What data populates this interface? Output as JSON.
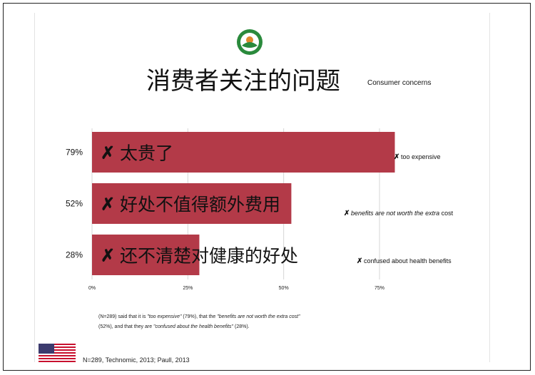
{
  "title": {
    "zh": "消费者关注的问题",
    "en": "Consumer concerns"
  },
  "chart_data": {
    "type": "bar",
    "orientation": "horizontal",
    "categories": [
      "太贵了",
      "好处不值得额外费用",
      "还不清楚对健康的好处"
    ],
    "values": [
      79,
      52,
      28
    ],
    "value_labels": [
      "79%",
      "52%",
      "28%"
    ],
    "mark": "✗",
    "english_annotations": [
      {
        "parts": [
          {
            "text": "too expensive",
            "italic": false
          }
        ]
      },
      {
        "parts": [
          {
            "text": "benefits are not worth the extra",
            "italic": true
          },
          {
            "text": " cost",
            "italic": false
          }
        ]
      },
      {
        "parts": [
          {
            "text": "confused about health benefits",
            "italic": false
          }
        ]
      }
    ],
    "x_ticks": [
      "0%",
      "25%",
      "50%",
      "75%"
    ],
    "xlim": [
      0,
      75
    ],
    "bar_color": "#b33a48",
    "grid": true,
    "legend": "none",
    "xlabel": "",
    "ylabel": ""
  },
  "footnote": {
    "parts": [
      {
        "text": "(N=289) said that it is ",
        "italic": false
      },
      {
        "text": "\"too expensive\"",
        "italic": true
      },
      {
        "text": " (79%), that the ",
        "italic": false
      },
      {
        "text": "\"benefits are not worth the extra cost\"",
        "italic": true
      },
      {
        "text": " (52%), and that they are ",
        "italic": false
      },
      {
        "text": "\"confused about the health benefits\"",
        "italic": true
      },
      {
        "text": " (28%).",
        "italic": false
      }
    ]
  },
  "source": "N=289, Technomic,  2013; Paull, 2013",
  "icons": {
    "logo": "organic-logo-icon",
    "flag": "us-flag-icon"
  },
  "colors": {
    "bar": "#b33a48",
    "logo_green": "#2a8a3c",
    "logo_orange": "#e0892c"
  }
}
